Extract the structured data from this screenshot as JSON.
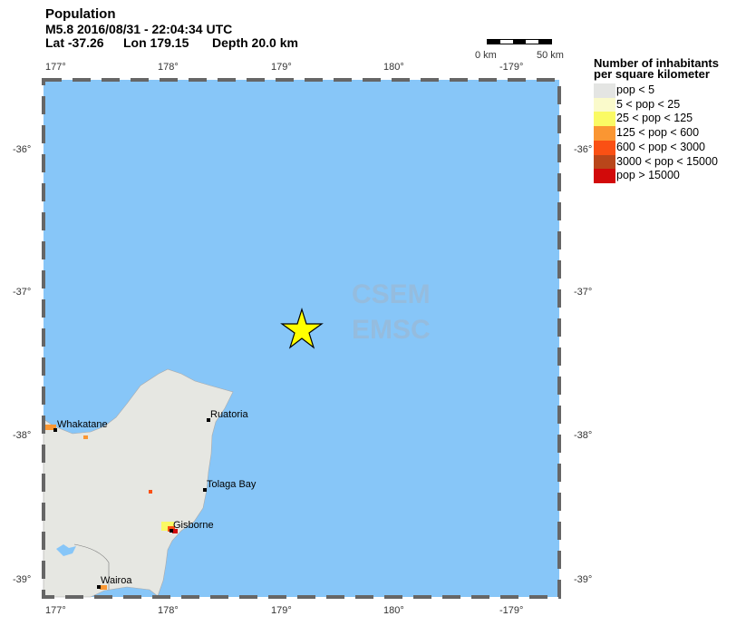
{
  "header": {
    "title": "Population",
    "event": "M5.8  2016/08/31 - 22:04:34 UTC",
    "lat": "Lat -37.26",
    "lon": "Lon 179.15",
    "depth": "Depth  20.0 km"
  },
  "scale": {
    "start": "0 km",
    "end": "50 km"
  },
  "axes": {
    "lon_ticks": [
      "177°",
      "178°",
      "179°",
      "180°",
      "-179°"
    ],
    "lat_ticks": [
      "-36°",
      "-37°",
      "-38°",
      "-39°"
    ]
  },
  "legend": {
    "title1": "Number of inhabitants",
    "title2": "per square kilometer",
    "items": [
      {
        "label": "pop < 5",
        "color": "#e4e5e3"
      },
      {
        "label": "5 < pop < 25",
        "color": "#fafacb"
      },
      {
        "label": "25 < pop < 125",
        "color": "#fafa64"
      },
      {
        "label": "125 < pop < 600",
        "color": "#fa9632"
      },
      {
        "label": "600 < pop < 3000",
        "color": "#fa5014"
      },
      {
        "label": "3000 < pop < 15000",
        "color": "#b9461a"
      },
      {
        "label": "pop > 15000",
        "color": "#d20a0a"
      }
    ]
  },
  "cities": [
    {
      "name": "Whakatane"
    },
    {
      "name": "Ruatoria"
    },
    {
      "name": "Tolaga Bay"
    },
    {
      "name": "Gisborne"
    },
    {
      "name": "Wairoa"
    }
  ],
  "watermark": {
    "line1": "CSEM",
    "line2": "EMSC"
  },
  "colors": {
    "sea": "#87c6f8",
    "land": "#e6e7e2",
    "epicenter": "#ffff00"
  }
}
